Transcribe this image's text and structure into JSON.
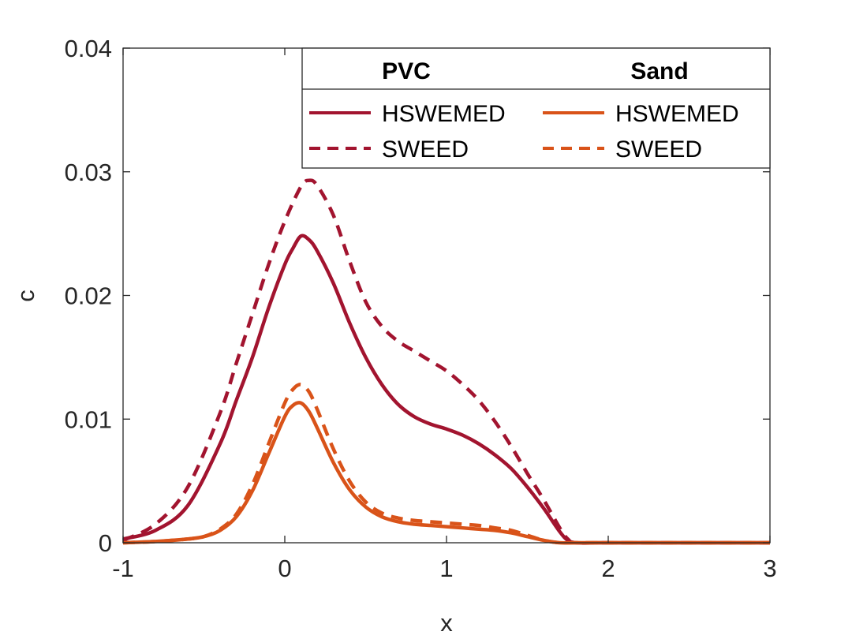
{
  "chart_data": {
    "type": "line",
    "title": "",
    "xlabel": "x",
    "ylabel": "c",
    "xlim": [
      -1,
      3
    ],
    "ylim": [
      0,
      0.04
    ],
    "xticks": [
      -1,
      0,
      1,
      2,
      3
    ],
    "xtick_labels": [
      "-1",
      "0",
      "1",
      "2",
      "3"
    ],
    "yticks": [
      0,
      0.01,
      0.02,
      0.03,
      0.04
    ],
    "ytick_labels": [
      "0",
      "0.01",
      "0.02",
      "0.03",
      "0.04"
    ],
    "grid": false,
    "legend": {
      "placement": "top-right",
      "groups": [
        {
          "title": "PVC",
          "entries": [
            "HSWEMED",
            "SWEED"
          ]
        },
        {
          "title": "Sand",
          "entries": [
            "HSWEMED",
            "SWEED"
          ]
        }
      ]
    },
    "series": [
      {
        "name": "PVC HSWEMED",
        "group": "PVC",
        "style": "solid",
        "color": "#A2142F",
        "x": [
          -1.0,
          -0.8,
          -0.6,
          -0.4,
          -0.3,
          -0.2,
          -0.1,
          0.0,
          0.05,
          0.1,
          0.15,
          0.2,
          0.3,
          0.4,
          0.5,
          0.6,
          0.7,
          0.8,
          0.9,
          1.0,
          1.1,
          1.2,
          1.3,
          1.4,
          1.5,
          1.6,
          1.7,
          1.75,
          1.8,
          2.0,
          2.5,
          3.0
        ],
        "y": [
          0.0003,
          0.001,
          0.003,
          0.008,
          0.0115,
          0.015,
          0.019,
          0.0225,
          0.0238,
          0.0248,
          0.0245,
          0.0236,
          0.021,
          0.0178,
          0.015,
          0.0128,
          0.0112,
          0.0102,
          0.0096,
          0.0092,
          0.0087,
          0.008,
          0.0071,
          0.006,
          0.0045,
          0.0028,
          0.0009,
          0.0002,
          0.0,
          0.0,
          0.0,
          0.0
        ]
      },
      {
        "name": "PVC SWEED",
        "group": "PVC",
        "style": "dashed",
        "color": "#A2142F",
        "x": [
          -1.0,
          -0.8,
          -0.6,
          -0.4,
          -0.3,
          -0.2,
          -0.1,
          0.0,
          0.1,
          0.15,
          0.2,
          0.3,
          0.4,
          0.5,
          0.6,
          0.7,
          0.8,
          0.9,
          1.0,
          1.1,
          1.2,
          1.3,
          1.4,
          1.5,
          1.6,
          1.7,
          1.75,
          1.8,
          2.0,
          2.5,
          3.0
        ],
        "y": [
          0.0002,
          0.0015,
          0.0045,
          0.0105,
          0.0145,
          0.0185,
          0.0225,
          0.026,
          0.0288,
          0.0293,
          0.0289,
          0.0265,
          0.0228,
          0.0195,
          0.0175,
          0.0163,
          0.0155,
          0.0147,
          0.0139,
          0.0128,
          0.0115,
          0.0098,
          0.0078,
          0.0056,
          0.0035,
          0.0012,
          0.0003,
          0.0,
          0.0,
          0.0,
          0.0
        ]
      },
      {
        "name": "Sand HSWEMED",
        "group": "Sand",
        "style": "solid",
        "color": "#D95319",
        "x": [
          -1.0,
          -0.8,
          -0.6,
          -0.5,
          -0.4,
          -0.3,
          -0.2,
          -0.1,
          0.0,
          0.05,
          0.1,
          0.15,
          0.2,
          0.3,
          0.4,
          0.5,
          0.6,
          0.7,
          0.8,
          0.9,
          1.0,
          1.1,
          1.2,
          1.3,
          1.4,
          1.5,
          1.6,
          1.7,
          1.8,
          2.0,
          2.5,
          3.0
        ],
        "y": [
          0.0,
          0.0001,
          0.0003,
          0.0005,
          0.001,
          0.0021,
          0.0042,
          0.0072,
          0.0102,
          0.0111,
          0.0113,
          0.0106,
          0.0093,
          0.0065,
          0.0043,
          0.0029,
          0.0021,
          0.0017,
          0.0015,
          0.0014,
          0.0013,
          0.0012,
          0.0011,
          0.001,
          0.0008,
          0.0005,
          0.0002,
          0.0,
          0.0,
          0.0,
          0.0,
          0.0
        ]
      },
      {
        "name": "Sand SWEED",
        "group": "Sand",
        "style": "dashed",
        "color": "#D95319",
        "x": [
          -1.0,
          -0.8,
          -0.6,
          -0.5,
          -0.4,
          -0.3,
          -0.2,
          -0.1,
          0.0,
          0.05,
          0.1,
          0.15,
          0.2,
          0.3,
          0.4,
          0.5,
          0.6,
          0.7,
          0.8,
          0.9,
          1.0,
          1.1,
          1.2,
          1.3,
          1.4,
          1.5,
          1.6,
          1.7,
          1.8,
          2.0,
          2.5,
          3.0
        ],
        "y": [
          0.0,
          0.0001,
          0.0003,
          0.0005,
          0.0011,
          0.0023,
          0.0047,
          0.008,
          0.0113,
          0.0124,
          0.0128,
          0.0122,
          0.0108,
          0.0076,
          0.005,
          0.0033,
          0.0024,
          0.002,
          0.0018,
          0.0017,
          0.0016,
          0.0015,
          0.0014,
          0.0012,
          0.001,
          0.0006,
          0.0002,
          0.0,
          0.0,
          0.0,
          0.0,
          0.0
        ]
      }
    ]
  }
}
